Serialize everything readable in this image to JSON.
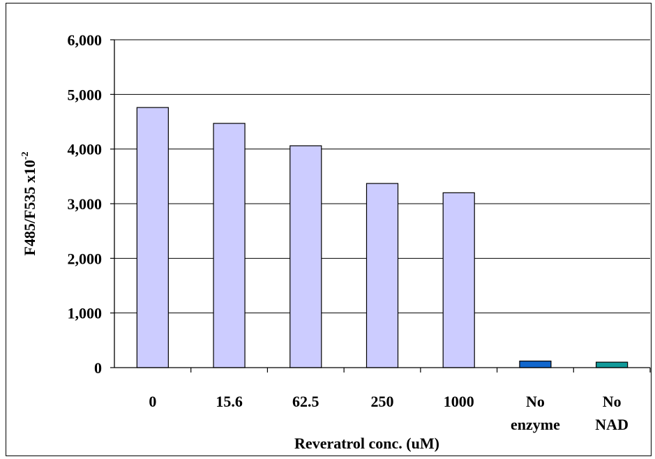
{
  "chart_data": {
    "type": "bar",
    "title": "",
    "xlabel": "Reveratrol conc. (uM)",
    "ylabel": "F485/F535 x10",
    "ylabel_superscript": "-2",
    "ylim": [
      0,
      6000
    ],
    "yticks": [
      0,
      1000,
      2000,
      3000,
      4000,
      5000,
      6000
    ],
    "ytick_labels": [
      "0",
      "1,000",
      "2,000",
      "3,000",
      "4,000",
      "5,000",
      "6,000"
    ],
    "grid": true,
    "legend": "none",
    "categories": [
      [
        "0"
      ],
      [
        "15.6"
      ],
      [
        "62.5"
      ],
      [
        "250"
      ],
      [
        "1000"
      ],
      [
        "No",
        "enzyme"
      ],
      [
        "No",
        "NAD"
      ]
    ],
    "values": [
      4760,
      4470,
      4060,
      3370,
      3200,
      120,
      100
    ],
    "bar_colors": [
      "#ccccff",
      "#ccccff",
      "#ccccff",
      "#ccccff",
      "#ccccff",
      "#1166cc",
      "#119999"
    ]
  }
}
